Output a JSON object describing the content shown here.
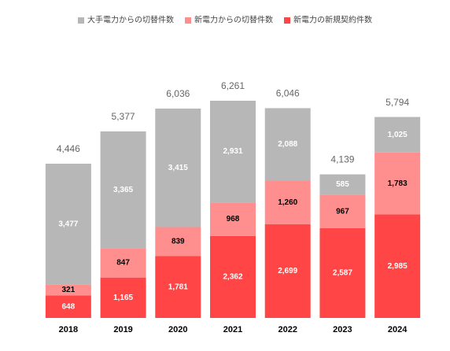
{
  "chart_data": {
    "type": "stacked_bar",
    "categories": [
      "2018",
      "2019",
      "2020",
      "2021",
      "2022",
      "2023",
      "2024"
    ],
    "series": [
      {
        "name": "大手電力からの切替件数",
        "color": "#b7b7b7",
        "label_color": "#ffffff",
        "values": [
          3477,
          3365,
          3415,
          2931,
          2088,
          585,
          1025
        ],
        "value_labels": [
          "3,477",
          "3,365",
          "3,415",
          "2,931",
          "2,088",
          "585",
          "1,025"
        ]
      },
      {
        "name": "新電力からの切替件数",
        "color": "#ff8f8f",
        "label_color": "#000000",
        "values": [
          321,
          847,
          839,
          968,
          1260,
          967,
          1783
        ],
        "value_labels": [
          "321",
          "847",
          "839",
          "968",
          "1,260",
          "967",
          "1,783"
        ]
      },
      {
        "name": "新電力の新規契約件数",
        "color": "#ff4545",
        "label_color": "#ffffff",
        "values": [
          648,
          1165,
          1781,
          2362,
          2699,
          2587,
          2985
        ],
        "value_labels": [
          "648",
          "1,165",
          "1,781",
          "2,362",
          "2,699",
          "2,587",
          "2,985"
        ]
      }
    ],
    "totals": {
      "values": [
        4446,
        5377,
        6036,
        6261,
        6046,
        4139,
        5794
      ],
      "value_labels": [
        "4,446",
        "5,377",
        "6,036",
        "6,261",
        "6,046",
        "4,139",
        "5,794"
      ]
    },
    "legend": "top"
  }
}
